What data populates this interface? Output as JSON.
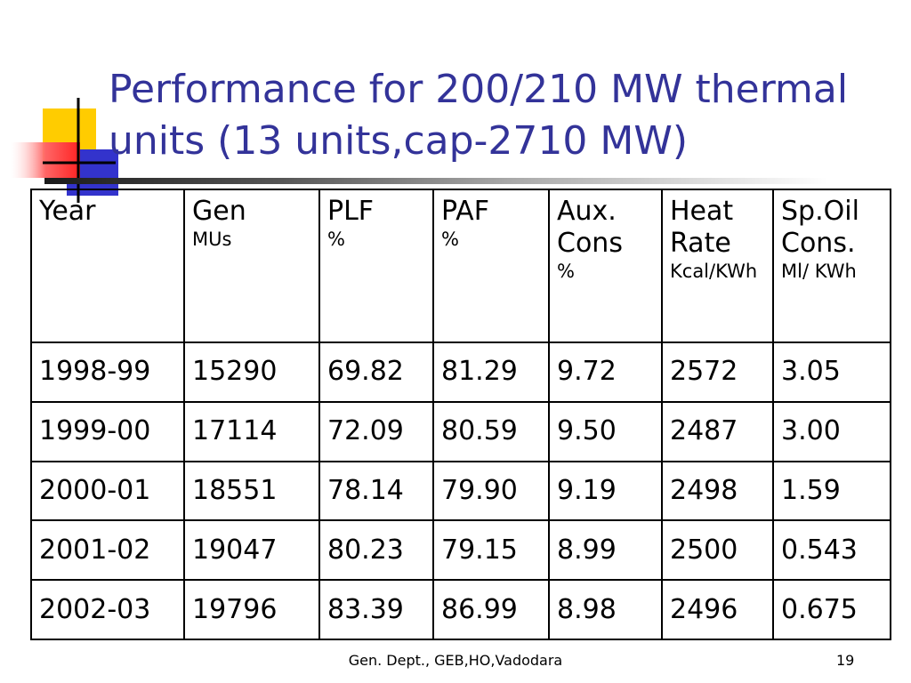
{
  "slide": {
    "title_line1": "Performance for 200/210 MW thermal",
    "title_line2": "units (13 units,cap-2710 MW)",
    "footer": "Gen. Dept., GEB,HO,Vadodara",
    "page_number": "19",
    "colors": {
      "title": "#333399",
      "logo_yellow": "#ffcc00",
      "logo_blue": "#3333cc",
      "logo_red": "#ff3333"
    }
  },
  "table": {
    "headers": [
      {
        "label": "Year",
        "unit": ""
      },
      {
        "label": "Gen",
        "unit": "MUs"
      },
      {
        "label": "PLF",
        "unit": "%"
      },
      {
        "label": "PAF",
        "unit": "%"
      },
      {
        "label": "Aux. Cons",
        "unit": "%"
      },
      {
        "label": "Heat Rate",
        "unit": "Kcal/KWh"
      },
      {
        "label": "Sp.Oil Cons.",
        "unit": "Ml/ KWh"
      }
    ],
    "rows": [
      [
        "1998-99",
        "15290",
        "69.82",
        "81.29",
        "9.72",
        "2572",
        "3.05"
      ],
      [
        "1999-00",
        "17114",
        "72.09",
        "80.59",
        "9.50",
        "2487",
        "3.00"
      ],
      [
        "2000-01",
        " 18551",
        " 78.14",
        "79.90",
        "9.19",
        "2498",
        "1.59"
      ],
      [
        "2001-02",
        " 19047",
        " 80.23",
        "79.15",
        " 8.99",
        " 2500",
        " 0.543"
      ],
      [
        "2002-03",
        " 19796",
        " 83.39",
        "86.99",
        " 8.98",
        " 2496",
        " 0.675"
      ]
    ]
  }
}
